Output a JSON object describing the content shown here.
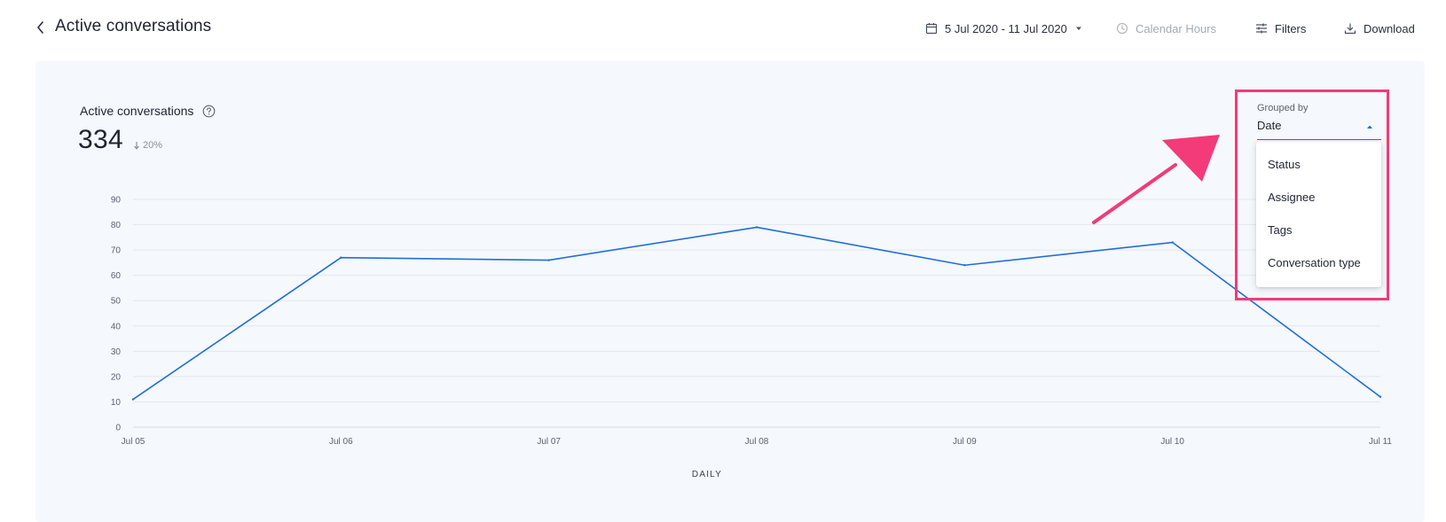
{
  "header": {
    "title": "Active conversations",
    "date_range": "5 Jul 2020 - 11 Jul 2020",
    "calendar_hours": "Calendar Hours",
    "filters": "Filters",
    "download": "Download"
  },
  "metric": {
    "label": "Active conversations",
    "value": "334",
    "change": "20%",
    "change_direction": "down"
  },
  "grouped_by": {
    "label": "Grouped by",
    "value": "Date",
    "options": [
      "Status",
      "Assignee",
      "Tags",
      "Conversation type"
    ]
  },
  "annotation": {
    "color": "#f23b78"
  },
  "chart_data": {
    "type": "line",
    "categories": [
      "Jul 05",
      "Jul 06",
      "Jul 07",
      "Jul 08",
      "Jul 09",
      "Jul 10",
      "Jul 11"
    ],
    "series": [
      {
        "values": [
          11,
          67,
          66,
          79,
          64,
          73,
          12
        ],
        "color": "#1f6fd9"
      }
    ],
    "yticks": [
      "0",
      "10",
      "20",
      "30",
      "40",
      "50",
      "60",
      "70",
      "80",
      "90"
    ],
    "ylim": [
      0,
      90
    ],
    "xlabel": "DAILY",
    "ylabel": "",
    "grid": true
  }
}
